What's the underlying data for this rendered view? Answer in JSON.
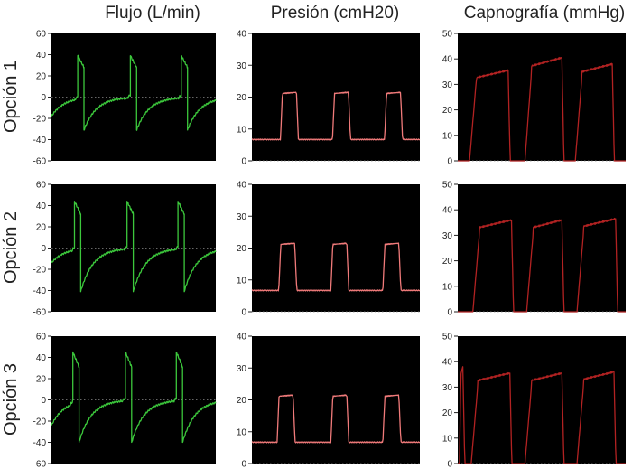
{
  "columns": [
    "Flujo (L/min)",
    "Presión (cmH20)",
    "Capnografía (mmHg)"
  ],
  "rows": [
    "Opción 1",
    "Opción 2",
    "Opción 3"
  ],
  "colors": {
    "flow": "#3cc83c",
    "pressure": "#f07a7a",
    "capno": "#b22222",
    "panel_bg": "#000000",
    "zero_line": "#8a8a8a"
  },
  "chart_data": [
    {
      "type": "line",
      "title": "Flujo (L/min)",
      "ylim": [
        -60,
        60
      ],
      "yticks": [
        "60",
        "40",
        "20",
        "0",
        "-20",
        "-40",
        "-60"
      ],
      "series": [
        {
          "row": "Opción 1",
          "breath_starts": [
            0.16,
            0.48,
            0.79
          ],
          "peak": 39,
          "end_insp": 28,
          "trough": -31,
          "baseline_start": -18
        },
        {
          "row": "Opción 2",
          "breath_starts": [
            0.14,
            0.46,
            0.77
          ],
          "peak": 44,
          "end_insp": 32,
          "trough": -41,
          "baseline_start": -14
        },
        {
          "row": "Opción 3",
          "breath_starts": [
            0.13,
            0.45,
            0.76
          ],
          "peak": 45,
          "end_insp": 31,
          "trough": -40,
          "baseline_start": -24
        }
      ]
    },
    {
      "type": "line",
      "title": "Presión (cmH20)",
      "ylim": [
        0,
        40
      ],
      "yticks": [
        "40",
        "30",
        "20",
        "10",
        "0"
      ],
      "series": [
        {
          "row": "Opción 1",
          "breath_starts": [
            0.17,
            0.48,
            0.79
          ],
          "peep": 6.7,
          "plateau": 21.5
        },
        {
          "row": "Opción 2",
          "breath_starts": [
            0.16,
            0.47,
            0.78
          ],
          "peep": 6.7,
          "plateau": 21.5
        },
        {
          "row": "Opción 3",
          "breath_starts": [
            0.15,
            0.47,
            0.78
          ],
          "peep": 6.7,
          "plateau": 21.5
        }
      ]
    },
    {
      "type": "line",
      "title": "Capnografía (mmHg)",
      "ylim": [
        0,
        50
      ],
      "yticks": [
        "50",
        "40",
        "30",
        "20",
        "10",
        "0"
      ],
      "series": [
        {
          "row": "Opción 1",
          "plateaus": [
            [
              0.07,
              0.3,
              35.5
            ],
            [
              0.4,
              0.62,
              40.5
            ],
            [
              0.7,
              0.92,
              38
            ]
          ]
        },
        {
          "row": "Opción 2",
          "plateaus": [
            [
              0.09,
              0.32,
              36
            ],
            [
              0.41,
              0.62,
              36
            ],
            [
              0.71,
              0.94,
              36.5
            ]
          ]
        },
        {
          "row": "Opción 3",
          "plateaus": [
            [
              0.01,
              0.03,
              38
            ],
            [
              0.08,
              0.31,
              35.5
            ],
            [
              0.4,
              0.62,
              35.5
            ],
            [
              0.71,
              0.93,
              36
            ]
          ]
        }
      ]
    }
  ]
}
